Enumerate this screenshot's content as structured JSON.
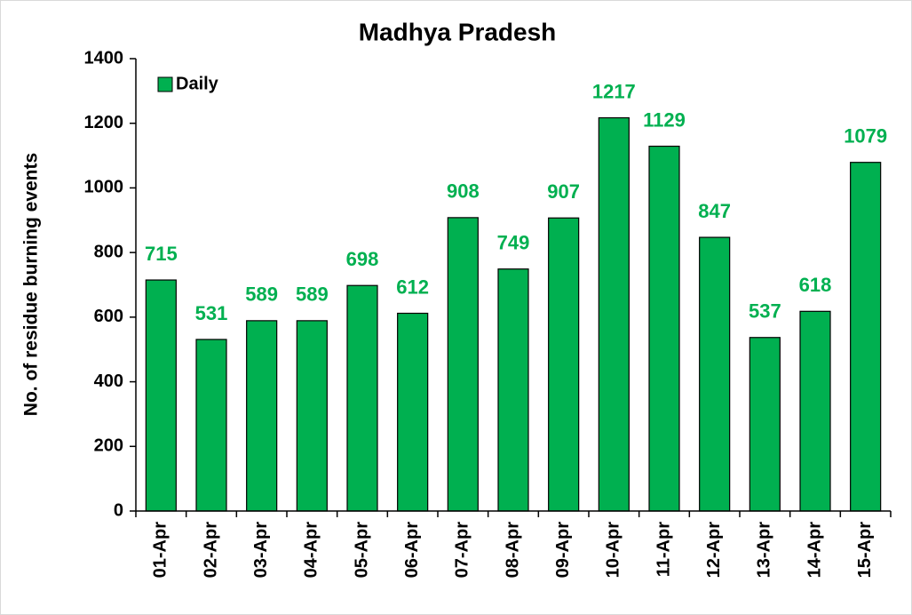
{
  "chart_data": {
    "type": "bar",
    "title": "Madhya Pradesh",
    "y_label": "No. of residue burning events",
    "categories": [
      "01-Apr",
      "02-Apr",
      "03-Apr",
      "04-Apr",
      "05-Apr",
      "06-Apr",
      "07-Apr",
      "08-Apr",
      "09-Apr",
      "10-Apr",
      "11-Apr",
      "12-Apr",
      "13-Apr",
      "14-Apr",
      "15-Apr"
    ],
    "series": [
      {
        "name": "Daily",
        "color": "#00b050",
        "values": [
          715,
          531,
          589,
          589,
          698,
          612,
          908,
          749,
          907,
          1217,
          1129,
          847,
          537,
          618,
          1079
        ]
      }
    ],
    "ylim": [
      0,
      1400
    ],
    "yticks": [
      0,
      200,
      400,
      600,
      800,
      1000,
      1200,
      1400
    ],
    "legend": "top-left"
  }
}
